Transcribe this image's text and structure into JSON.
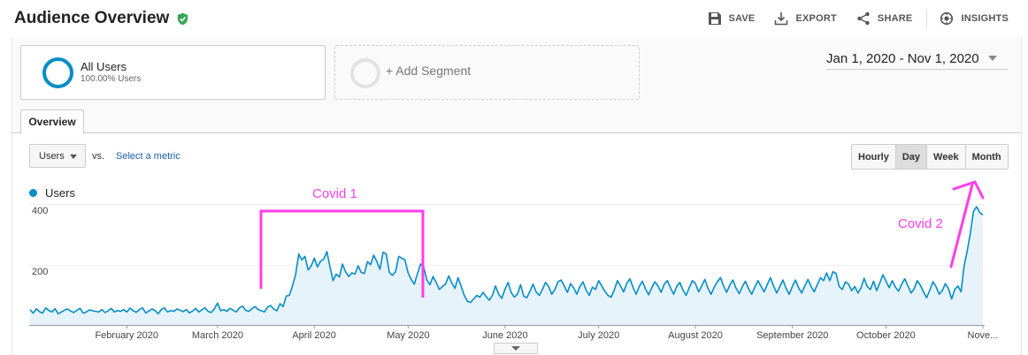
{
  "header": {
    "title": "Audience Overview",
    "actions": [
      {
        "label": "SAVE",
        "icon": "save-icon"
      },
      {
        "label": "EXPORT",
        "icon": "export-icon"
      },
      {
        "label": "SHARE",
        "icon": "share-icon"
      },
      {
        "label": "INSIGHTS",
        "icon": "insights-icon"
      }
    ]
  },
  "segments": {
    "active": {
      "name": "All Users",
      "percent": "100.00% Users"
    },
    "add_label": "+ Add Segment"
  },
  "date_range": "Jan 1, 2020 - Nov 1, 2020",
  "tabs": [
    {
      "label": "Overview"
    }
  ],
  "metric_picker": {
    "selected": "Users",
    "vs": "vs.",
    "select_metric": "Select a metric"
  },
  "granularity": {
    "options": [
      "Hourly",
      "Day",
      "Week",
      "Month"
    ],
    "selected": "Day"
  },
  "annotations": {
    "covid1": "Covid 1",
    "covid2": "Covid 2"
  },
  "colors": {
    "series": "#058dc7",
    "annotation": "#ff3de8"
  },
  "chart_data": {
    "type": "area",
    "series": [
      {
        "name": "Users"
      }
    ],
    "y_ticks": [
      "400",
      "200"
    ],
    "x_tick_labels": [
      "February 2020",
      "March 2020",
      "April 2020",
      "May 2020",
      "June 2020",
      "July 2020",
      "August 2020",
      "September 2020",
      "October 2020",
      "Nove..."
    ],
    "x_range": [
      "2020-01-01",
      "2020-11-01"
    ],
    "ylim": [
      0,
      460
    ],
    "points": [
      [
        "2020-01-01",
        52
      ],
      [
        "2020-01-02",
        40
      ],
      [
        "2020-01-03",
        55
      ],
      [
        "2020-01-04",
        45
      ],
      [
        "2020-01-05",
        40
      ],
      [
        "2020-01-06",
        58
      ],
      [
        "2020-01-07",
        49
      ],
      [
        "2020-01-08",
        44
      ],
      [
        "2020-01-09",
        55
      ],
      [
        "2020-01-10",
        38
      ],
      [
        "2020-01-11",
        44
      ],
      [
        "2020-01-12",
        50
      ],
      [
        "2020-01-13",
        54
      ],
      [
        "2020-01-14",
        47
      ],
      [
        "2020-01-15",
        42
      ],
      [
        "2020-01-16",
        50
      ],
      [
        "2020-01-17",
        56
      ],
      [
        "2020-01-18",
        40
      ],
      [
        "2020-01-19",
        44
      ],
      [
        "2020-01-20",
        51
      ],
      [
        "2020-01-21",
        48
      ],
      [
        "2020-01-22",
        46
      ],
      [
        "2020-01-23",
        44
      ],
      [
        "2020-01-24",
        52
      ],
      [
        "2020-01-25",
        42
      ],
      [
        "2020-01-26",
        48
      ],
      [
        "2020-01-27",
        56
      ],
      [
        "2020-01-28",
        44
      ],
      [
        "2020-01-29",
        49
      ],
      [
        "2020-01-30",
        46
      ],
      [
        "2020-01-31",
        52
      ],
      [
        "2020-02-01",
        44
      ],
      [
        "2020-02-02",
        57
      ],
      [
        "2020-02-03",
        48
      ],
      [
        "2020-02-04",
        43
      ],
      [
        "2020-02-05",
        52
      ],
      [
        "2020-02-06",
        58
      ],
      [
        "2020-02-07",
        41
      ],
      [
        "2020-02-08",
        47
      ],
      [
        "2020-02-09",
        54
      ],
      [
        "2020-02-10",
        49
      ],
      [
        "2020-02-11",
        38
      ],
      [
        "2020-02-12",
        52
      ],
      [
        "2020-02-13",
        58
      ],
      [
        "2020-02-14",
        44
      ],
      [
        "2020-02-15",
        49
      ],
      [
        "2020-02-16",
        46
      ],
      [
        "2020-02-17",
        54
      ],
      [
        "2020-02-18",
        50
      ],
      [
        "2020-02-19",
        45
      ],
      [
        "2020-02-20",
        52
      ],
      [
        "2020-02-21",
        41
      ],
      [
        "2020-02-22",
        47
      ],
      [
        "2020-02-23",
        56
      ],
      [
        "2020-02-24",
        44
      ],
      [
        "2020-02-25",
        51
      ],
      [
        "2020-02-26",
        58
      ],
      [
        "2020-02-27",
        46
      ],
      [
        "2020-02-28",
        42
      ],
      [
        "2020-02-29",
        55
      ],
      [
        "2020-03-01",
        74
      ],
      [
        "2020-03-02",
        48
      ],
      [
        "2020-03-03",
        52
      ],
      [
        "2020-03-04",
        46
      ],
      [
        "2020-03-05",
        56
      ],
      [
        "2020-03-06",
        50
      ],
      [
        "2020-03-07",
        44
      ],
      [
        "2020-03-08",
        58
      ],
      [
        "2020-03-09",
        64
      ],
      [
        "2020-03-10",
        50
      ],
      [
        "2020-03-11",
        46
      ],
      [
        "2020-03-12",
        55
      ],
      [
        "2020-03-13",
        62
      ],
      [
        "2020-03-14",
        52
      ],
      [
        "2020-03-15",
        48
      ],
      [
        "2020-03-16",
        44
      ],
      [
        "2020-03-17",
        60
      ],
      [
        "2020-03-18",
        66
      ],
      [
        "2020-03-19",
        54
      ],
      [
        "2020-03-20",
        48
      ],
      [
        "2020-03-21",
        72
      ],
      [
        "2020-03-22",
        62
      ],
      [
        "2020-03-23",
        98
      ],
      [
        "2020-03-24",
        100
      ],
      [
        "2020-03-25",
        132
      ],
      [
        "2020-03-26",
        170
      ],
      [
        "2020-03-27",
        240
      ],
      [
        "2020-03-28",
        220
      ],
      [
        "2020-03-29",
        232
      ],
      [
        "2020-03-30",
        186
      ],
      [
        "2020-03-31",
        200
      ],
      [
        "2020-04-01",
        226
      ],
      [
        "2020-04-02",
        196
      ],
      [
        "2020-04-03",
        216
      ],
      [
        "2020-04-04",
        222
      ],
      [
        "2020-04-05",
        248
      ],
      [
        "2020-04-06",
        196
      ],
      [
        "2020-04-07",
        150
      ],
      [
        "2020-04-08",
        172
      ],
      [
        "2020-04-09",
        162
      ],
      [
        "2020-04-10",
        206
      ],
      [
        "2020-04-11",
        180
      ],
      [
        "2020-04-12",
        164
      ],
      [
        "2020-04-13",
        176
      ],
      [
        "2020-04-14",
        172
      ],
      [
        "2020-04-15",
        200
      ],
      [
        "2020-04-16",
        178
      ],
      [
        "2020-04-17",
        174
      ],
      [
        "2020-04-18",
        214
      ],
      [
        "2020-04-19",
        204
      ],
      [
        "2020-04-20",
        236
      ],
      [
        "2020-04-21",
        214
      ],
      [
        "2020-04-22",
        188
      ],
      [
        "2020-04-23",
        246
      ],
      [
        "2020-04-24",
        240
      ],
      [
        "2020-04-25",
        178
      ],
      [
        "2020-04-26",
        168
      ],
      [
        "2020-04-27",
        180
      ],
      [
        "2020-04-28",
        232
      ],
      [
        "2020-04-29",
        226
      ],
      [
        "2020-04-30",
        220
      ],
      [
        "2020-05-01",
        176
      ],
      [
        "2020-05-02",
        154
      ],
      [
        "2020-05-03",
        138
      ],
      [
        "2020-05-04",
        174
      ],
      [
        "2020-05-05",
        206
      ],
      [
        "2020-05-06",
        196
      ],
      [
        "2020-05-07",
        152
      ],
      [
        "2020-05-08",
        136
      ],
      [
        "2020-05-09",
        164
      ],
      [
        "2020-05-10",
        144
      ],
      [
        "2020-05-11",
        120
      ],
      [
        "2020-05-12",
        130
      ],
      [
        "2020-05-13",
        138
      ],
      [
        "2020-05-14",
        166
      ],
      [
        "2020-05-15",
        142
      ],
      [
        "2020-05-16",
        124
      ],
      [
        "2020-05-17",
        160
      ],
      [
        "2020-05-18",
        130
      ],
      [
        "2020-05-19",
        100
      ],
      [
        "2020-05-20",
        80
      ],
      [
        "2020-05-21",
        76
      ],
      [
        "2020-05-22",
        88
      ],
      [
        "2020-05-23",
        100
      ],
      [
        "2020-05-24",
        94
      ],
      [
        "2020-05-25",
        110
      ],
      [
        "2020-05-26",
        96
      ],
      [
        "2020-05-27",
        84
      ],
      [
        "2020-05-28",
        100
      ],
      [
        "2020-05-29",
        132
      ],
      [
        "2020-05-30",
        104
      ],
      [
        "2020-05-31",
        90
      ],
      [
        "2020-06-01",
        120
      ],
      [
        "2020-06-02",
        144
      ],
      [
        "2020-06-03",
        110
      ],
      [
        "2020-06-04",
        94
      ],
      [
        "2020-06-05",
        104
      ],
      [
        "2020-06-06",
        136
      ],
      [
        "2020-06-07",
        98
      ],
      [
        "2020-06-08",
        92
      ],
      [
        "2020-06-09",
        114
      ],
      [
        "2020-06-10",
        138
      ],
      [
        "2020-06-11",
        112
      ],
      [
        "2020-06-12",
        100
      ],
      [
        "2020-06-13",
        120
      ],
      [
        "2020-06-14",
        144
      ],
      [
        "2020-06-15",
        130
      ],
      [
        "2020-06-16",
        104
      ],
      [
        "2020-06-17",
        120
      ],
      [
        "2020-06-18",
        146
      ],
      [
        "2020-06-19",
        152
      ],
      [
        "2020-06-20",
        132
      ],
      [
        "2020-06-21",
        110
      ],
      [
        "2020-06-22",
        140
      ],
      [
        "2020-06-23",
        126
      ],
      [
        "2020-06-24",
        104
      ],
      [
        "2020-06-25",
        130
      ],
      [
        "2020-06-26",
        146
      ],
      [
        "2020-06-27",
        118
      ],
      [
        "2020-06-28",
        100
      ],
      [
        "2020-06-29",
        128
      ],
      [
        "2020-06-30",
        120
      ],
      [
        "2020-07-01",
        150
      ],
      [
        "2020-07-02",
        132
      ],
      [
        "2020-07-03",
        114
      ],
      [
        "2020-07-04",
        100
      ],
      [
        "2020-07-05",
        94
      ],
      [
        "2020-07-06",
        118
      ],
      [
        "2020-07-07",
        150
      ],
      [
        "2020-07-08",
        132
      ],
      [
        "2020-07-09",
        112
      ],
      [
        "2020-07-10",
        140
      ],
      [
        "2020-07-11",
        156
      ],
      [
        "2020-07-12",
        128
      ],
      [
        "2020-07-13",
        104
      ],
      [
        "2020-07-14",
        130
      ],
      [
        "2020-07-15",
        148
      ],
      [
        "2020-07-16",
        122
      ],
      [
        "2020-07-17",
        102
      ],
      [
        "2020-07-18",
        126
      ],
      [
        "2020-07-19",
        146
      ],
      [
        "2020-07-20",
        132
      ],
      [
        "2020-07-21",
        110
      ],
      [
        "2020-07-22",
        138
      ],
      [
        "2020-07-23",
        150
      ],
      [
        "2020-07-24",
        126
      ],
      [
        "2020-07-25",
        104
      ],
      [
        "2020-07-26",
        130
      ],
      [
        "2020-07-27",
        144
      ],
      [
        "2020-07-28",
        118
      ],
      [
        "2020-07-29",
        100
      ],
      [
        "2020-07-30",
        126
      ],
      [
        "2020-07-31",
        150
      ],
      [
        "2020-08-01",
        140
      ],
      [
        "2020-08-02",
        112
      ],
      [
        "2020-08-03",
        132
      ],
      [
        "2020-08-04",
        154
      ],
      [
        "2020-08-05",
        124
      ],
      [
        "2020-08-06",
        104
      ],
      [
        "2020-08-07",
        128
      ],
      [
        "2020-08-08",
        146
      ],
      [
        "2020-08-09",
        160
      ],
      [
        "2020-08-10",
        132
      ],
      [
        "2020-08-11",
        110
      ],
      [
        "2020-08-12",
        136
      ],
      [
        "2020-08-13",
        152
      ],
      [
        "2020-08-14",
        124
      ],
      [
        "2020-08-15",
        106
      ],
      [
        "2020-08-16",
        130
      ],
      [
        "2020-08-17",
        148
      ],
      [
        "2020-08-18",
        122
      ],
      [
        "2020-08-19",
        104
      ],
      [
        "2020-08-20",
        128
      ],
      [
        "2020-08-21",
        150
      ],
      [
        "2020-08-22",
        130
      ],
      [
        "2020-08-23",
        112
      ],
      [
        "2020-08-24",
        138
      ],
      [
        "2020-08-25",
        160
      ],
      [
        "2020-08-26",
        132
      ],
      [
        "2020-08-27",
        108
      ],
      [
        "2020-08-28",
        130
      ],
      [
        "2020-08-29",
        152
      ],
      [
        "2020-08-30",
        124
      ],
      [
        "2020-08-31",
        104
      ],
      [
        "2020-09-01",
        130
      ],
      [
        "2020-09-02",
        152
      ],
      [
        "2020-09-03",
        126
      ],
      [
        "2020-09-04",
        108
      ],
      [
        "2020-09-05",
        132
      ],
      [
        "2020-09-06",
        154
      ],
      [
        "2020-09-07",
        130
      ],
      [
        "2020-09-08",
        112
      ],
      [
        "2020-09-09",
        136
      ],
      [
        "2020-09-10",
        160
      ],
      [
        "2020-09-11",
        150
      ],
      [
        "2020-09-12",
        176
      ],
      [
        "2020-09-13",
        150
      ],
      [
        "2020-09-14",
        180
      ],
      [
        "2020-09-15",
        174
      ],
      [
        "2020-09-16",
        130
      ],
      [
        "2020-09-17",
        120
      ],
      [
        "2020-09-18",
        146
      ],
      [
        "2020-09-19",
        138
      ],
      [
        "2020-09-20",
        116
      ],
      [
        "2020-09-21",
        130
      ],
      [
        "2020-09-22",
        108
      ],
      [
        "2020-09-23",
        126
      ],
      [
        "2020-09-24",
        158
      ],
      [
        "2020-09-25",
        130
      ],
      [
        "2020-09-26",
        120
      ],
      [
        "2020-09-27",
        148
      ],
      [
        "2020-09-28",
        116
      ],
      [
        "2020-09-29",
        142
      ],
      [
        "2020-09-30",
        170
      ],
      [
        "2020-10-01",
        148
      ],
      [
        "2020-10-02",
        126
      ],
      [
        "2020-10-03",
        150
      ],
      [
        "2020-10-04",
        128
      ],
      [
        "2020-10-05",
        114
      ],
      [
        "2020-10-06",
        138
      ],
      [
        "2020-10-07",
        156
      ],
      [
        "2020-10-08",
        132
      ],
      [
        "2020-10-09",
        108
      ],
      [
        "2020-10-10",
        122
      ],
      [
        "2020-10-11",
        150
      ],
      [
        "2020-10-12",
        134
      ],
      [
        "2020-10-13",
        112
      ],
      [
        "2020-10-14",
        92
      ],
      [
        "2020-10-15",
        118
      ],
      [
        "2020-10-16",
        146
      ],
      [
        "2020-10-17",
        130
      ],
      [
        "2020-10-18",
        104
      ],
      [
        "2020-10-19",
        116
      ],
      [
        "2020-10-20",
        140
      ],
      [
        "2020-10-21",
        122
      ],
      [
        "2020-10-22",
        88
      ],
      [
        "2020-10-23",
        120
      ],
      [
        "2020-10-24",
        132
      ],
      [
        "2020-10-25",
        112
      ],
      [
        "2020-10-26",
        200
      ],
      [
        "2020-10-27",
        250
      ],
      [
        "2020-10-28",
        312
      ],
      [
        "2020-10-29",
        384
      ],
      [
        "2020-10-30",
        400
      ],
      [
        "2020-10-31",
        380
      ],
      [
        "2020-11-01",
        372
      ]
    ]
  }
}
